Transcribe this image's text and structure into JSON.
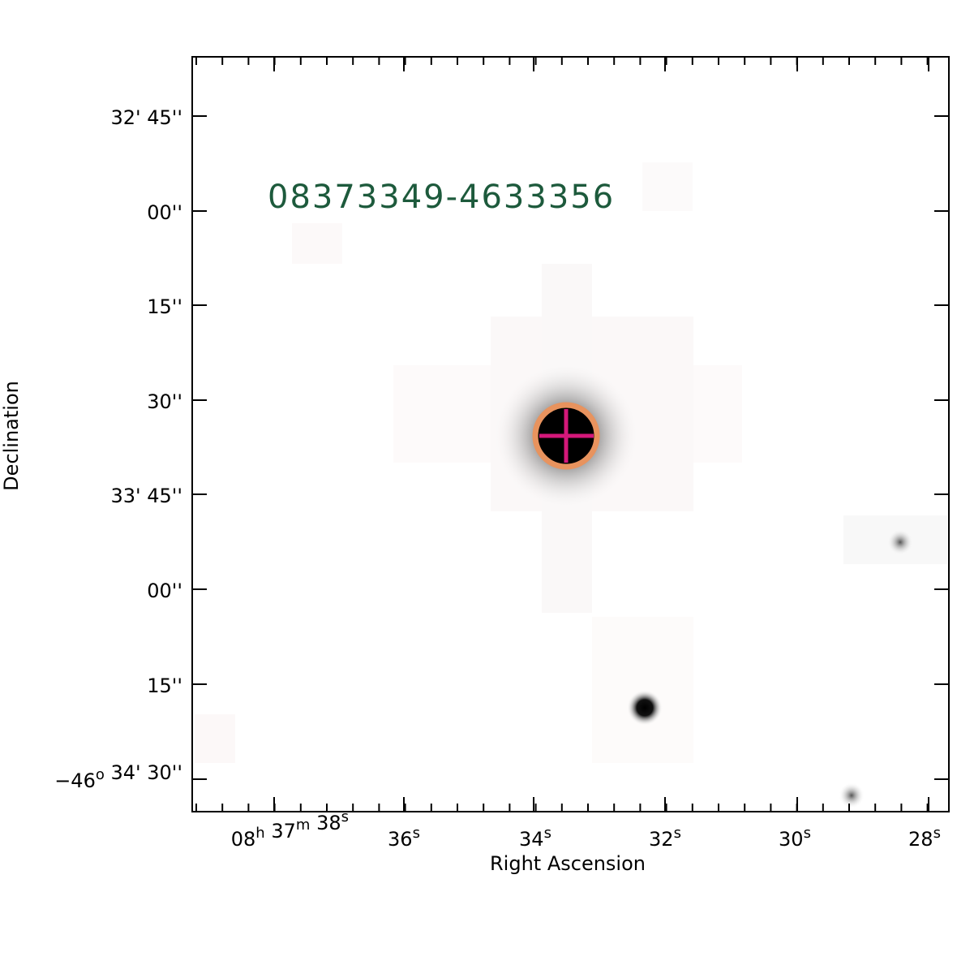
{
  "title": "08373349-4633356",
  "x_axis": {
    "label": "Right Ascension",
    "ticks": [
      [
        {
          "text": "08",
          "sup": "h"
        },
        {
          "text": " 37",
          "sup": "m"
        },
        {
          "text": " 38",
          "sup": "s"
        }
      ],
      [
        {
          "text": "36",
          "sup": "s"
        }
      ],
      [
        {
          "text": "34",
          "sup": "s"
        }
      ],
      [
        {
          "text": "32",
          "sup": "s"
        }
      ],
      [
        {
          "text": "30",
          "sup": "s"
        }
      ],
      [
        {
          "text": "28",
          "sup": "s"
        }
      ]
    ]
  },
  "y_axis": {
    "label": "Declination",
    "ticks": [
      [
        {
          "text": "32' 45''"
        }
      ],
      [
        {
          "text": "00''"
        }
      ],
      [
        {
          "text": "15''"
        }
      ],
      [
        {
          "text": "30''"
        }
      ],
      [
        {
          "text": "33' 45''"
        }
      ],
      [
        {
          "text": "00''"
        }
      ],
      [
        {
          "text": "15''"
        }
      ],
      [
        {
          "text": "−46",
          "sup": "o"
        },
        {
          "text": " 34' 30''"
        }
      ]
    ]
  }
}
